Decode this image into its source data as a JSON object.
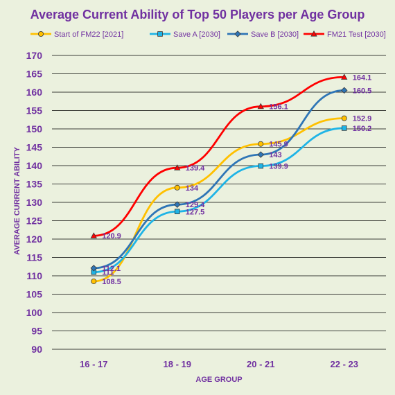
{
  "chart_data": {
    "type": "line",
    "title": "Average Current Ability of Top 50 Players per Age Group",
    "xlabel": "AGE GROUP",
    "ylabel": "AVERAGE CURRENT ABILITY",
    "categories": [
      "16 - 17",
      "18 - 19",
      "20 - 21",
      "22 - 23"
    ],
    "ylim": [
      90,
      170
    ],
    "yticks": [
      90,
      95,
      100,
      105,
      110,
      115,
      120,
      125,
      130,
      135,
      140,
      145,
      150,
      155,
      160,
      165,
      170
    ],
    "grid": true,
    "legend_position": "top",
    "series": [
      {
        "name": "Start of FM22 [2021]",
        "color": "#ffc000",
        "marker": "circle",
        "values": [
          108.5,
          134,
          145.9,
          152.9
        ],
        "labels": [
          "108.5",
          "134",
          "145.9",
          "152.9"
        ]
      },
      {
        "name": "Save A [2030]",
        "color": "#1fb4e6",
        "marker": "square",
        "values": [
          111,
          127.5,
          139.9,
          150.2
        ],
        "labels": [
          "111",
          "127.5",
          "139.9",
          "150.2"
        ]
      },
      {
        "name": "Save B [2030]",
        "color": "#2e75b6",
        "marker": "diamond",
        "values": [
          112.1,
          129.4,
          143,
          160.5
        ],
        "labels": [
          "112.1",
          "129.4",
          "143",
          "160.5"
        ]
      },
      {
        "name": "FM21 Test [2030]",
        "color": "#ff0000",
        "marker": "triangle",
        "values": [
          120.9,
          139.4,
          156.1,
          164.1
        ],
        "labels": [
          "120.9",
          "139.4",
          "156.1",
          "164.1"
        ]
      }
    ]
  }
}
